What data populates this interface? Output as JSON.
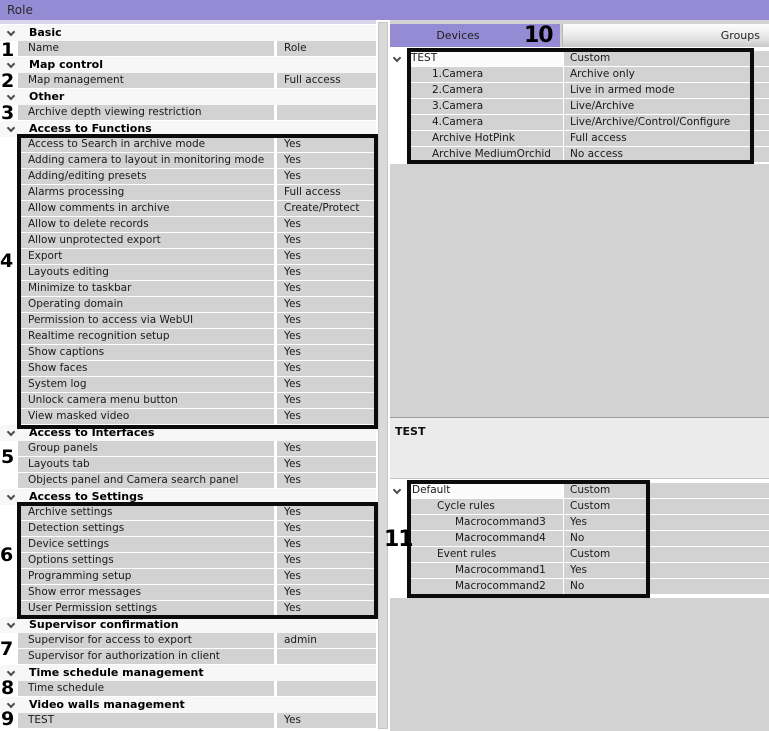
{
  "title_bar": {
    "title": "Role"
  },
  "annotations": {
    "n1": "1",
    "n2": "2",
    "n3": "3",
    "n4": "4",
    "n5": "5",
    "n6": "6",
    "n7": "7",
    "n8": "8",
    "n9": "9",
    "n10": "10",
    "n11": "11"
  },
  "property_grid": {
    "rows": [
      {
        "type": "header",
        "label": "Basic"
      },
      {
        "type": "prop",
        "name": "Name",
        "value": "Role"
      },
      {
        "type": "header",
        "label": "Map control"
      },
      {
        "type": "prop",
        "name": "Map management",
        "value": "Full access"
      },
      {
        "type": "header",
        "label": "Other"
      },
      {
        "type": "prop",
        "name": "Archive depth viewing restriction",
        "value": ""
      },
      {
        "type": "header",
        "label": "Access to Functions"
      },
      {
        "type": "prop",
        "name": "Access to Search in archive mode",
        "value": "Yes"
      },
      {
        "type": "prop",
        "name": "Adding camera to layout in monitoring mode",
        "value": "Yes"
      },
      {
        "type": "prop",
        "name": "Adding/editing presets",
        "value": "Yes"
      },
      {
        "type": "prop",
        "name": "Alarms processing",
        "value": "Full access"
      },
      {
        "type": "prop",
        "name": "Allow comments in archive",
        "value": "Create/Protect"
      },
      {
        "type": "prop",
        "name": "Allow to delete records",
        "value": "Yes"
      },
      {
        "type": "prop",
        "name": "Allow unprotected export",
        "value": "Yes"
      },
      {
        "type": "prop",
        "name": "Export",
        "value": "Yes"
      },
      {
        "type": "prop",
        "name": "Layouts editing",
        "value": "Yes"
      },
      {
        "type": "prop",
        "name": "Minimize to taskbar",
        "value": "Yes"
      },
      {
        "type": "prop",
        "name": "Operating domain",
        "value": "Yes"
      },
      {
        "type": "prop",
        "name": "Permission to access via WebUI",
        "value": "Yes"
      },
      {
        "type": "prop",
        "name": "Realtime recognition setup",
        "value": "Yes"
      },
      {
        "type": "prop",
        "name": "Show captions",
        "value": "Yes"
      },
      {
        "type": "prop",
        "name": "Show faces",
        "value": "Yes"
      },
      {
        "type": "prop",
        "name": "System log",
        "value": "Yes"
      },
      {
        "type": "prop",
        "name": "Unlock camera menu button",
        "value": "Yes"
      },
      {
        "type": "prop",
        "name": "View masked video",
        "value": "Yes"
      },
      {
        "type": "header",
        "label": "Access to Interfaces"
      },
      {
        "type": "prop",
        "name": "Group panels",
        "value": "Yes"
      },
      {
        "type": "prop",
        "name": "Layouts tab",
        "value": "Yes"
      },
      {
        "type": "prop",
        "name": "Objects panel and Camera search panel",
        "value": "Yes"
      },
      {
        "type": "header",
        "label": "Access to Settings"
      },
      {
        "type": "prop",
        "name": "Archive settings",
        "value": "Yes"
      },
      {
        "type": "prop",
        "name": "Detection settings",
        "value": "Yes"
      },
      {
        "type": "prop",
        "name": "Device settings",
        "value": "Yes"
      },
      {
        "type": "prop",
        "name": "Options settings",
        "value": "Yes"
      },
      {
        "type": "prop",
        "name": "Programming setup",
        "value": "Yes"
      },
      {
        "type": "prop",
        "name": "Show error messages",
        "value": "Yes"
      },
      {
        "type": "prop",
        "name": "User Permission settings",
        "value": "Yes"
      },
      {
        "type": "header",
        "label": "Supervisor confirmation"
      },
      {
        "type": "prop",
        "name": "Supervisor for access to export",
        "value": "admin"
      },
      {
        "type": "prop",
        "name": "Supervisor for authorization in client",
        "value": ""
      },
      {
        "type": "header",
        "label": "Time schedule management"
      },
      {
        "type": "prop",
        "name": "Time schedule",
        "value": ""
      },
      {
        "type": "header",
        "label": "Video walls management"
      },
      {
        "type": "prop",
        "name": "TEST",
        "value": "Yes"
      }
    ]
  },
  "right_panel": {
    "tabs": {
      "devices": "Devices",
      "groups": "Groups"
    },
    "selection_caption": "TEST",
    "devices_tree": {
      "rows": [
        {
          "label": "TEST",
          "value": "Custom",
          "chev": "down",
          "chevLeft": 4,
          "textPad": 3,
          "selected": true
        },
        {
          "label": "1.Camera",
          "value": "Archive only",
          "chev": "right",
          "chevLeft": 26,
          "textPad": 24,
          "selected": false
        },
        {
          "label": "2.Camera",
          "value": "Live in armed mode",
          "chev": "right",
          "chevLeft": 26,
          "textPad": 24,
          "selected": false
        },
        {
          "label": "3.Camera",
          "value": "Live/Archive",
          "chev": "right",
          "chevLeft": 26,
          "textPad": 24,
          "selected": false
        },
        {
          "label": "4.Camera",
          "value": "Live/Archive/Control/Configure",
          "chev": "right",
          "chevLeft": 26,
          "textPad": 24,
          "selected": false
        },
        {
          "label": "Archive HotPink",
          "value": "Full access",
          "chev": "right",
          "chevLeft": 26,
          "textPad": 24,
          "selected": false
        },
        {
          "label": "Archive MediumOrchid",
          "value": "No access",
          "chev": "right",
          "chevLeft": 26,
          "textPad": 24,
          "selected": false
        }
      ]
    },
    "rules_tree": {
      "rows": [
        {
          "label": "Default",
          "value": "Custom",
          "chev": "down",
          "chevLeft": 4,
          "textPad": 4,
          "selected": true
        },
        {
          "label": "Cycle rules",
          "value": "Custom",
          "chev": "down",
          "chevLeft": 30,
          "textPad": 29,
          "selected": false
        },
        {
          "label": "Macrocommand3",
          "value": "Yes",
          "chev": "",
          "chevLeft": 0,
          "textPad": 47,
          "selected": false
        },
        {
          "label": "Macrocommand4",
          "value": "No",
          "chev": "",
          "chevLeft": 0,
          "textPad": 47,
          "selected": false
        },
        {
          "label": "Event rules",
          "value": "Custom",
          "chev": "down",
          "chevLeft": 30,
          "textPad": 29,
          "selected": false
        },
        {
          "label": "Macrocommand1",
          "value": "Yes",
          "chev": "",
          "chevLeft": 0,
          "textPad": 47,
          "selected": false
        },
        {
          "label": "Macrocommand2",
          "value": "No",
          "chev": "",
          "chevLeft": 0,
          "textPad": 47,
          "selected": false
        }
      ]
    }
  }
}
